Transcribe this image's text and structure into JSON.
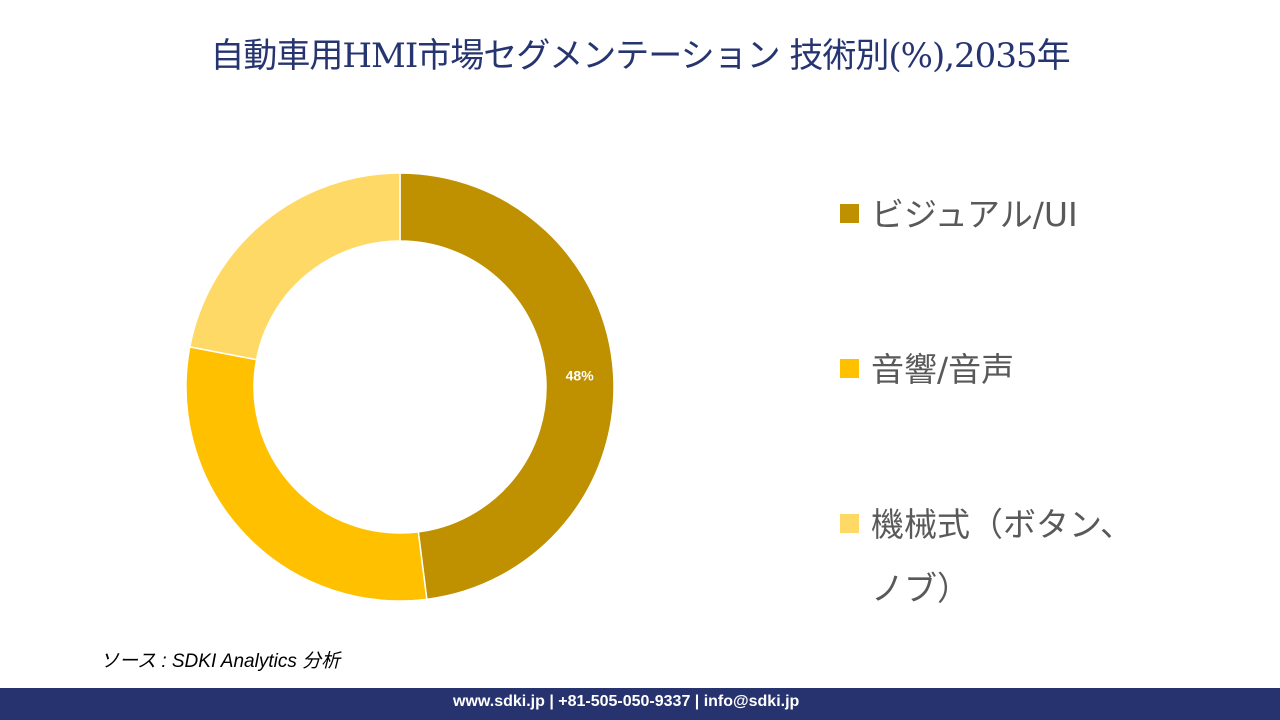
{
  "chart_data": {
    "type": "pie",
    "donut": true,
    "title": "自動車用HMI市場セグメンテーション 技術別(%),2035年",
    "categories": [
      "ビジュアル/UI",
      "音響/音声",
      "機械式（ボタン、ノブ）"
    ],
    "values": [
      48,
      30,
      22
    ],
    "data_labels": [
      "48%",
      "",
      ""
    ],
    "colors": [
      "#BF9000",
      "#FFC000",
      "#FFD966"
    ],
    "legend_placement": "right"
  },
  "source": "ソース : SDKI Analytics 分析",
  "footer": "www.sdki.jp | +81-505-050-9337 | info@sdki.jp"
}
